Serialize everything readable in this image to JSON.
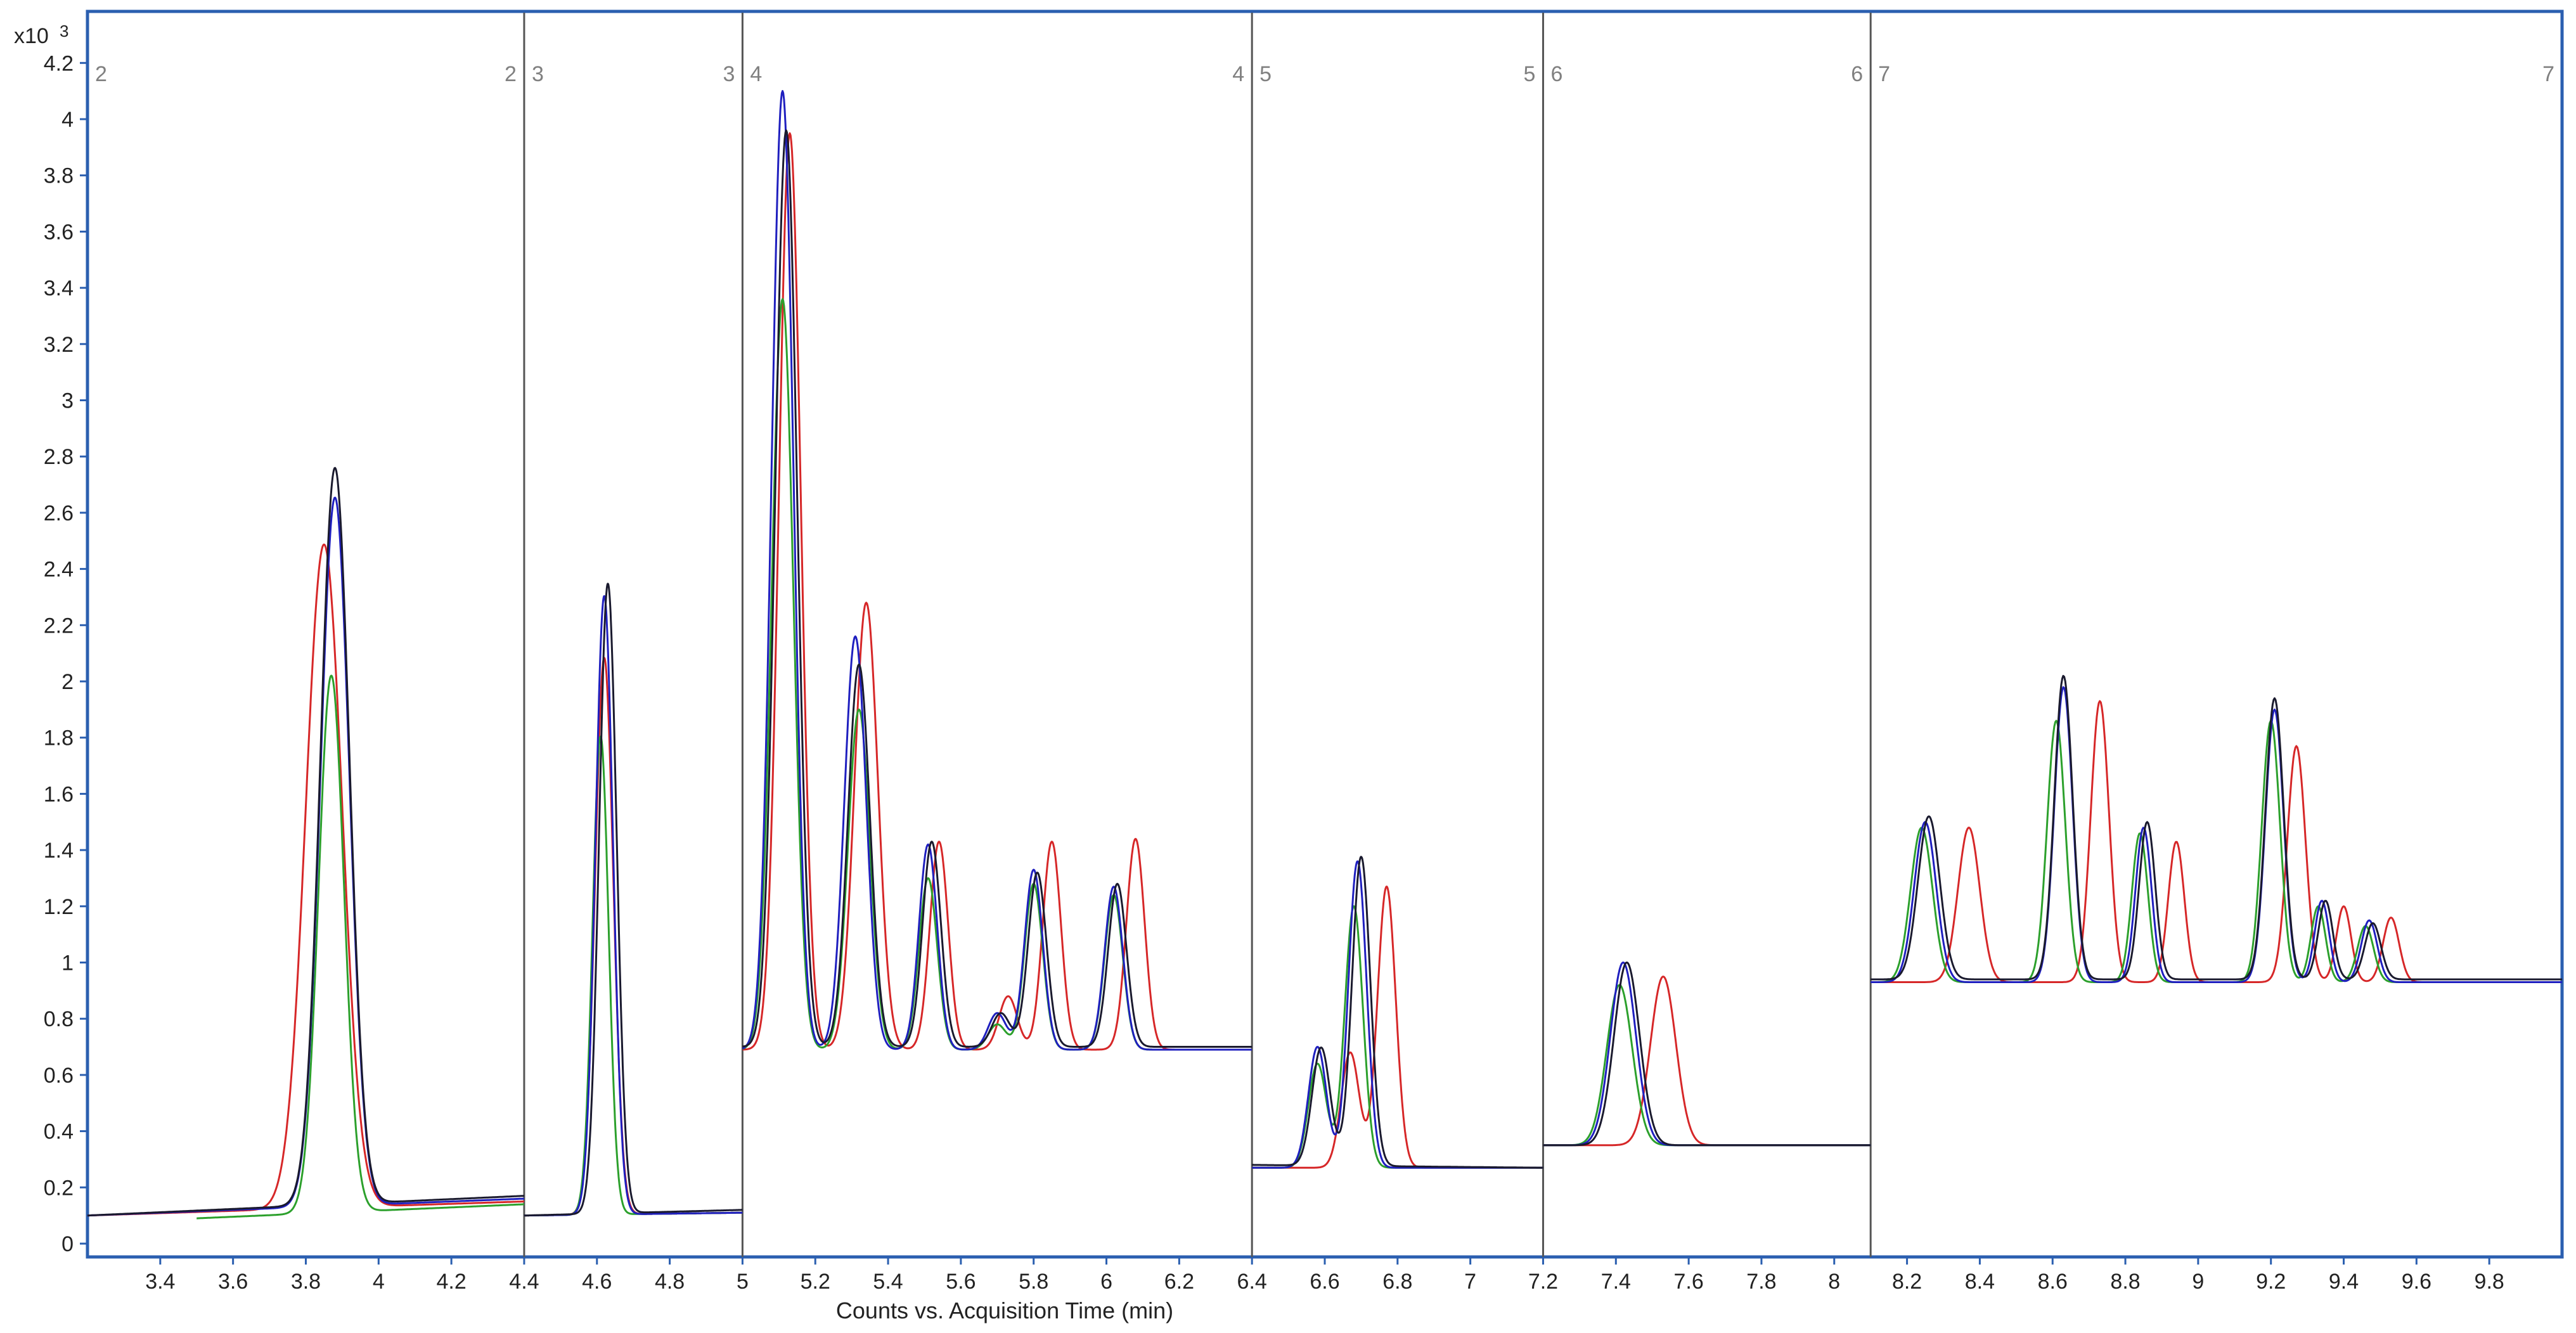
{
  "chart_data": {
    "type": "line",
    "title": "",
    "xlabel": "Counts vs. Acquisition Time (min)",
    "ylabel": "",
    "y_multiplier_label": "x10",
    "y_multiplier_exponent": "3",
    "xlim": [
      3.2,
      10.0
    ],
    "ylim": [
      0,
      4.25
    ],
    "grid": false,
    "legend": "none",
    "x_ticks": [
      "3.4",
      "3.6",
      "3.8",
      "4",
      "4.2",
      "4.4",
      "4.6",
      "4.8",
      "5",
      "5.2",
      "5.4",
      "5.6",
      "5.8",
      "6",
      "6.2",
      "6.4",
      "6.6",
      "6.8",
      "7",
      "7.2",
      "7.4",
      "7.6",
      "7.8",
      "8",
      "8.2",
      "8.4",
      "8.6",
      "8.8",
      "9",
      "9.2",
      "9.4",
      "9.6",
      "9.8"
    ],
    "y_ticks": [
      "0",
      "0.2",
      "0.4",
      "0.6",
      "0.8",
      "1",
      "1.2",
      "1.4",
      "1.6",
      "1.8",
      "2",
      "2.2",
      "2.4",
      "2.6",
      "2.8",
      "3",
      "3.2",
      "3.4",
      "3.6",
      "3.8",
      "4",
      "4.2"
    ],
    "segments": [
      {
        "start": 3.2,
        "end": 4.4,
        "start_label": "2",
        "end_label": "2"
      },
      {
        "start": 4.4,
        "end": 5.0,
        "start_label": "3",
        "end_label": "3"
      },
      {
        "start": 5.0,
        "end": 6.4,
        "start_label": "4",
        "end_label": "4"
      },
      {
        "start": 6.4,
        "end": 7.2,
        "start_label": "5",
        "end_label": "5"
      },
      {
        "start": 7.2,
        "end": 8.1,
        "start_label": "6",
        "end_label": "6"
      },
      {
        "start": 8.1,
        "end": 10.0,
        "start_label": "7",
        "end_label": "7"
      }
    ],
    "series": [
      {
        "color": "#d62728",
        "segments": [
          {
            "range": [
              3.2,
              4.4
            ],
            "base_start": 0.1,
            "base_end": 0.15,
            "peaks": [
              {
                "x": 3.85,
                "h": 2.46,
                "w": 0.05
              }
            ]
          },
          {
            "range": [
              4.4,
              5.0
            ],
            "base_start": 0.1,
            "base_end": 0.11,
            "peaks": [
              {
                "x": 4.62,
                "h": 2.08,
                "w": 0.025
              }
            ]
          },
          {
            "range": [
              5.0,
              6.4
            ],
            "base_start": 0.69,
            "base_end": 0.69,
            "peaks": [
              {
                "x": 5.13,
                "h": 3.95,
                "w": 0.03
              },
              {
                "x": 5.34,
                "h": 2.28,
                "w": 0.032
              },
              {
                "x": 5.54,
                "h": 1.43,
                "w": 0.025
              },
              {
                "x": 5.73,
                "h": 0.88,
                "w": 0.025
              },
              {
                "x": 5.85,
                "h": 1.43,
                "w": 0.025
              },
              {
                "x": 6.08,
                "h": 1.44,
                "w": 0.025
              }
            ]
          },
          {
            "range": [
              6.4,
              7.2
            ],
            "base_start": 0.27,
            "base_end": 0.27,
            "peaks": [
              {
                "x": 6.67,
                "h": 0.68,
                "w": 0.025
              },
              {
                "x": 6.77,
                "h": 1.27,
                "w": 0.025
              }
            ]
          },
          {
            "range": [
              7.2,
              8.1
            ],
            "base_start": 0.35,
            "base_end": 0.35,
            "peaks": [
              {
                "x": 7.53,
                "h": 0.95,
                "w": 0.035
              }
            ]
          },
          {
            "range": [
              8.1,
              10.0
            ],
            "base_start": 0.93,
            "base_end": 0.93,
            "peaks": [
              {
                "x": 8.37,
                "h": 1.48,
                "w": 0.03
              },
              {
                "x": 8.73,
                "h": 1.93,
                "w": 0.025
              },
              {
                "x": 8.94,
                "h": 1.43,
                "w": 0.022
              },
              {
                "x": 9.27,
                "h": 1.77,
                "w": 0.025
              },
              {
                "x": 9.4,
                "h": 1.2,
                "w": 0.02
              },
              {
                "x": 9.53,
                "h": 1.16,
                "w": 0.022
              }
            ]
          }
        ]
      },
      {
        "color": "#2ca02c",
        "segments": [
          {
            "range": [
              3.5,
              4.4
            ],
            "base_start": 0.09,
            "base_end": 0.14,
            "peaks": [
              {
                "x": 3.87,
                "h": 2.0,
                "w": 0.035
              }
            ]
          },
          {
            "range": [
              4.4,
              5.0
            ],
            "base_start": 0.1,
            "base_end": 0.11,
            "peaks": [
              {
                "x": 4.61,
                "h": 1.8,
                "w": 0.022
              }
            ]
          },
          {
            "range": [
              5.0,
              6.4
            ],
            "base_start": 0.69,
            "base_end": 0.69,
            "peaks": [
              {
                "x": 5.11,
                "h": 3.36,
                "w": 0.03
              },
              {
                "x": 5.32,
                "h": 1.9,
                "w": 0.03
              },
              {
                "x": 5.51,
                "h": 1.3,
                "w": 0.025
              },
              {
                "x": 5.7,
                "h": 0.78,
                "w": 0.025
              },
              {
                "x": 5.8,
                "h": 1.28,
                "w": 0.025
              },
              {
                "x": 6.02,
                "h": 1.24,
                "w": 0.025
              }
            ]
          },
          {
            "range": [
              6.4,
              7.2
            ],
            "base_start": 0.27,
            "base_end": 0.27,
            "peaks": [
              {
                "x": 6.58,
                "h": 0.64,
                "w": 0.025
              },
              {
                "x": 6.68,
                "h": 1.2,
                "w": 0.025
              }
            ]
          },
          {
            "range": [
              7.2,
              8.1
            ],
            "base_start": 0.35,
            "base_end": 0.35,
            "peaks": [
              {
                "x": 7.41,
                "h": 0.92,
                "w": 0.035
              }
            ]
          },
          {
            "range": [
              8.1,
              10.0
            ],
            "base_start": 0.93,
            "base_end": 0.93,
            "peaks": [
              {
                "x": 8.24,
                "h": 1.48,
                "w": 0.03
              },
              {
                "x": 8.61,
                "h": 1.86,
                "w": 0.025
              },
              {
                "x": 8.84,
                "h": 1.46,
                "w": 0.022
              },
              {
                "x": 9.2,
                "h": 1.86,
                "w": 0.025
              },
              {
                "x": 9.33,
                "h": 1.2,
                "w": 0.02
              },
              {
                "x": 9.46,
                "h": 1.13,
                "w": 0.022
              }
            ]
          }
        ]
      },
      {
        "color": "#1f1fbf",
        "segments": [
          {
            "range": [
              3.2,
              4.4
            ],
            "base_start": 0.1,
            "base_end": 0.16,
            "peaks": [
              {
                "x": 3.88,
                "h": 2.62,
                "w": 0.04
              }
            ]
          },
          {
            "range": [
              4.4,
              5.0
            ],
            "base_start": 0.1,
            "base_end": 0.11,
            "peaks": [
              {
                "x": 4.62,
                "h": 2.3,
                "w": 0.024
              }
            ]
          },
          {
            "range": [
              5.0,
              6.4
            ],
            "base_start": 0.69,
            "base_end": 0.69,
            "peaks": [
              {
                "x": 5.11,
                "h": 4.1,
                "w": 0.03
              },
              {
                "x": 5.31,
                "h": 2.16,
                "w": 0.03
              },
              {
                "x": 5.51,
                "h": 1.42,
                "w": 0.025
              },
              {
                "x": 5.7,
                "h": 0.82,
                "w": 0.025
              },
              {
                "x": 5.8,
                "h": 1.33,
                "w": 0.025
              },
              {
                "x": 6.02,
                "h": 1.27,
                "w": 0.025
              }
            ]
          },
          {
            "range": [
              6.4,
              7.2
            ],
            "base_start": 0.27,
            "base_end": 0.27,
            "peaks": [
              {
                "x": 6.58,
                "h": 0.7,
                "w": 0.025
              },
              {
                "x": 6.69,
                "h": 1.36,
                "w": 0.025
              }
            ]
          },
          {
            "range": [
              7.2,
              8.1
            ],
            "base_start": 0.35,
            "base_end": 0.35,
            "peaks": [
              {
                "x": 7.42,
                "h": 1.0,
                "w": 0.035
              }
            ]
          },
          {
            "range": [
              8.1,
              10.0
            ],
            "base_start": 0.93,
            "base_end": 0.93,
            "peaks": [
              {
                "x": 8.25,
                "h": 1.5,
                "w": 0.03
              },
              {
                "x": 8.63,
                "h": 1.98,
                "w": 0.025
              },
              {
                "x": 8.85,
                "h": 1.48,
                "w": 0.022
              },
              {
                "x": 9.21,
                "h": 1.9,
                "w": 0.025
              },
              {
                "x": 9.34,
                "h": 1.22,
                "w": 0.02
              },
              {
                "x": 9.47,
                "h": 1.15,
                "w": 0.022
              }
            ]
          }
        ]
      },
      {
        "color": "#1a1a2e",
        "segments": [
          {
            "range": [
              3.2,
              4.4
            ],
            "base_start": 0.1,
            "base_end": 0.17,
            "peaks": [
              {
                "x": 3.88,
                "h": 2.72,
                "w": 0.04
              }
            ]
          },
          {
            "range": [
              4.4,
              5.0
            ],
            "base_start": 0.1,
            "base_end": 0.12,
            "peaks": [
              {
                "x": 4.63,
                "h": 2.34,
                "w": 0.024
              }
            ]
          },
          {
            "range": [
              5.0,
              6.4
            ],
            "base_start": 0.7,
            "base_end": 0.7,
            "peaks": [
              {
                "x": 5.12,
                "h": 3.96,
                "w": 0.03
              },
              {
                "x": 5.32,
                "h": 2.06,
                "w": 0.03
              },
              {
                "x": 5.52,
                "h": 1.43,
                "w": 0.025
              },
              {
                "x": 5.71,
                "h": 0.82,
                "w": 0.025
              },
              {
                "x": 5.81,
                "h": 1.32,
                "w": 0.025
              },
              {
                "x": 6.03,
                "h": 1.28,
                "w": 0.025
              }
            ]
          },
          {
            "range": [
              6.4,
              7.2
            ],
            "base_start": 0.28,
            "base_end": 0.27,
            "peaks": [
              {
                "x": 6.59,
                "h": 0.7,
                "w": 0.025
              },
              {
                "x": 6.7,
                "h": 1.38,
                "w": 0.025
              }
            ]
          },
          {
            "range": [
              7.2,
              8.1
            ],
            "base_start": 0.35,
            "base_end": 0.35,
            "peaks": [
              {
                "x": 7.43,
                "h": 1.0,
                "w": 0.035
              }
            ]
          },
          {
            "range": [
              8.1,
              10.0
            ],
            "base_start": 0.94,
            "base_end": 0.94,
            "peaks": [
              {
                "x": 8.26,
                "h": 1.52,
                "w": 0.03
              },
              {
                "x": 8.63,
                "h": 2.02,
                "w": 0.025
              },
              {
                "x": 8.86,
                "h": 1.5,
                "w": 0.022
              },
              {
                "x": 9.21,
                "h": 1.94,
                "w": 0.025
              },
              {
                "x": 9.35,
                "h": 1.22,
                "w": 0.02
              },
              {
                "x": 9.48,
                "h": 1.14,
                "w": 0.022
              }
            ]
          }
        ]
      }
    ]
  }
}
